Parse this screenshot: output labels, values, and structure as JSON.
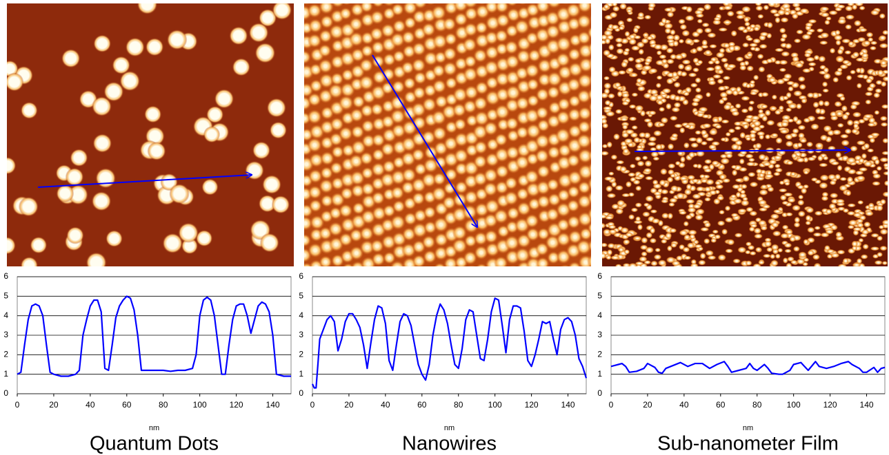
{
  "chart_data": [
    {
      "type": "line",
      "title": "Quantum Dots",
      "xlabel": "nm",
      "xlim": [
        0,
        150
      ],
      "ylim": [
        0,
        6
      ],
      "xticks": [
        0,
        20,
        40,
        60,
        80,
        100,
        120,
        140
      ],
      "yticks": [
        0,
        1,
        2,
        3,
        4,
        5,
        6
      ],
      "grid": true,
      "x": [
        0,
        2,
        4,
        6,
        8,
        10,
        12,
        14,
        16,
        18,
        20,
        24,
        28,
        32,
        34,
        36,
        38,
        40,
        42,
        44,
        46,
        48,
        50,
        52,
        54,
        56,
        58,
        60,
        62,
        64,
        66,
        68,
        72,
        76,
        80,
        84,
        88,
        92,
        96,
        98,
        100,
        102,
        104,
        106,
        108,
        110,
        112,
        114,
        116,
        118,
        120,
        122,
        124,
        126,
        128,
        130,
        132,
        134,
        136,
        138,
        140,
        142,
        146,
        150
      ],
      "series": [
        {
          "color": "#0000ff",
          "values": [
            1.0,
            1.1,
            2.5,
            3.8,
            4.5,
            4.6,
            4.5,
            4.0,
            2.5,
            1.1,
            1.0,
            0.9,
            0.9,
            1.0,
            1.2,
            3.0,
            3.8,
            4.5,
            4.8,
            4.8,
            4.2,
            1.3,
            1.2,
            2.5,
            3.9,
            4.5,
            4.8,
            5.0,
            4.9,
            4.3,
            3.0,
            1.2,
            1.2,
            1.2,
            1.2,
            1.15,
            1.2,
            1.2,
            1.3,
            2.0,
            4.0,
            4.8,
            4.95,
            4.8,
            4.0,
            2.5,
            1.0,
            1.0,
            2.5,
            3.8,
            4.5,
            4.6,
            4.6,
            4.0,
            3.1,
            3.8,
            4.5,
            4.7,
            4.6,
            4.2,
            3.0,
            1.0,
            0.9,
            0.9
          ]
        }
      ]
    },
    {
      "type": "line",
      "title": "Nanowires",
      "xlabel": "nm",
      "xlim": [
        0,
        150
      ],
      "ylim": [
        0,
        6
      ],
      "xticks": [
        0,
        20,
        40,
        60,
        80,
        100,
        120,
        140
      ],
      "yticks": [
        0,
        1,
        2,
        3,
        4,
        5,
        6
      ],
      "grid": true,
      "x": [
        0,
        1,
        2,
        3,
        4,
        6,
        8,
        10,
        12,
        14,
        16,
        18,
        20,
        22,
        24,
        26,
        28,
        30,
        32,
        34,
        36,
        38,
        40,
        42,
        44,
        46,
        48,
        50,
        52,
        54,
        56,
        58,
        60,
        62,
        64,
        66,
        68,
        70,
        72,
        74,
        76,
        78,
        80,
        82,
        84,
        86,
        88,
        90,
        92,
        94,
        96,
        98,
        100,
        102,
        104,
        106,
        108,
        110,
        112,
        114,
        116,
        118,
        120,
        122,
        124,
        126,
        128,
        130,
        132,
        134,
        136,
        138,
        140,
        142,
        144,
        146,
        148,
        150
      ],
      "series": [
        {
          "color": "#0000ff",
          "values": [
            0.5,
            0.3,
            0.3,
            1.5,
            2.8,
            3.3,
            3.8,
            4.0,
            3.7,
            2.2,
            2.8,
            3.7,
            4.1,
            4.1,
            3.8,
            3.4,
            2.5,
            1.3,
            2.6,
            3.8,
            4.5,
            4.4,
            3.6,
            1.7,
            1.2,
            2.5,
            3.7,
            4.1,
            4.0,
            3.5,
            2.5,
            1.5,
            1.0,
            0.7,
            1.5,
            3.0,
            4.0,
            4.6,
            4.3,
            3.6,
            2.5,
            1.5,
            1.3,
            2.3,
            3.8,
            4.3,
            4.2,
            3.0,
            1.8,
            1.7,
            2.8,
            4.2,
            4.9,
            4.8,
            3.5,
            2.1,
            3.8,
            4.5,
            4.5,
            4.4,
            3.2,
            1.7,
            1.4,
            2.0,
            2.8,
            3.7,
            3.6,
            3.7,
            2.8,
            2.0,
            3.3,
            3.8,
            3.9,
            3.7,
            3.0,
            1.8,
            1.4,
            0.8
          ]
        }
      ]
    },
    {
      "type": "line",
      "title": "Sub-nanometer Film",
      "xlabel": "nm",
      "xlim": [
        0,
        150
      ],
      "ylim": [
        0,
        6
      ],
      "xticks": [
        0,
        20,
        40,
        60,
        80,
        100,
        120,
        140
      ],
      "yticks": [
        0,
        1,
        2,
        3,
        4,
        5,
        6
      ],
      "grid": true,
      "x": [
        0,
        4,
        6,
        8,
        10,
        14,
        18,
        20,
        24,
        26,
        28,
        30,
        34,
        38,
        42,
        46,
        50,
        54,
        58,
        62,
        64,
        66,
        70,
        74,
        76,
        78,
        80,
        84,
        86,
        88,
        92,
        94,
        98,
        100,
        104,
        106,
        108,
        112,
        114,
        118,
        122,
        126,
        130,
        132,
        136,
        138,
        140,
        144,
        146,
        148,
        150
      ],
      "series": [
        {
          "color": "#0000ff",
          "values": [
            1.4,
            1.5,
            1.55,
            1.4,
            1.1,
            1.15,
            1.3,
            1.55,
            1.35,
            1.1,
            1.05,
            1.3,
            1.45,
            1.6,
            1.4,
            1.55,
            1.55,
            1.3,
            1.5,
            1.65,
            1.4,
            1.1,
            1.2,
            1.3,
            1.55,
            1.3,
            1.2,
            1.5,
            1.3,
            1.05,
            1.0,
            1.0,
            1.2,
            1.5,
            1.6,
            1.4,
            1.2,
            1.65,
            1.4,
            1.3,
            1.4,
            1.55,
            1.65,
            1.5,
            1.3,
            1.1,
            1.1,
            1.35,
            1.1,
            1.3,
            1.35
          ]
        }
      ]
    }
  ]
}
